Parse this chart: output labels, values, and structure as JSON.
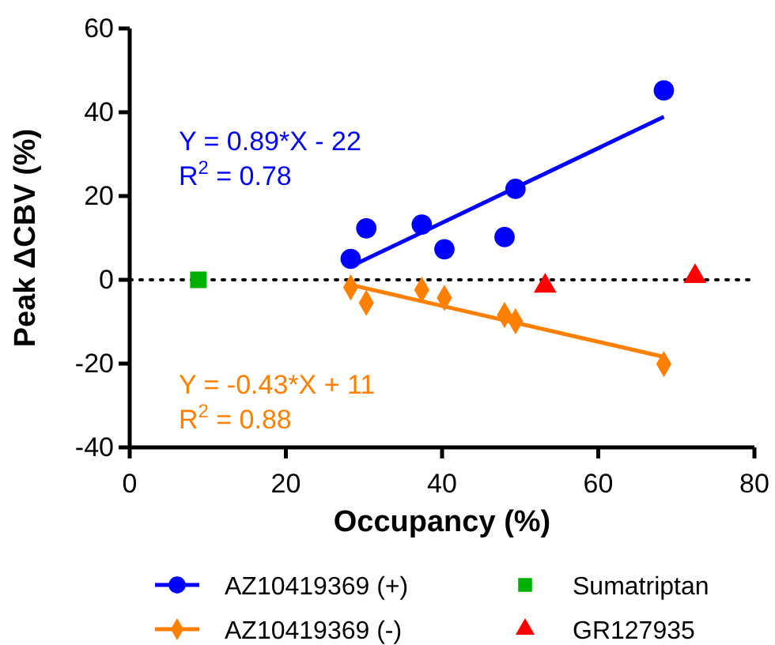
{
  "chart_data": {
    "type": "scatter",
    "xlabel": "Occupancy (%)",
    "ylabel": "Peak ΔCBV (%)",
    "xlim": [
      0,
      80
    ],
    "xticks": [
      0,
      20,
      40,
      60,
      80
    ],
    "ylim": [
      -40,
      60
    ],
    "yticks": [
      -40,
      -20,
      0,
      20,
      40,
      60
    ],
    "grid": false,
    "legend": "bottom",
    "series": [
      {
        "name": "AZ10419369 (+)",
        "color": "#0000ff",
        "marker": "circle",
        "x": [
          28.3,
          30.3,
          37.4,
          40.3,
          48.0,
          49.4,
          68.4
        ],
        "values": [
          5.0,
          12.3,
          13.2,
          7.3,
          10.2,
          21.7,
          45.2
        ]
      },
      {
        "name": "AZ10419369 (-)",
        "color": "#ff8000",
        "marker": "diamond",
        "x": [
          28.3,
          30.3,
          37.4,
          40.3,
          48.0,
          49.4,
          68.4
        ],
        "values": [
          -1.8,
          -5.5,
          -2.4,
          -4.3,
          -8.4,
          -9.9,
          -20.1
        ]
      },
      {
        "name": "Sumatriptan",
        "color": "#00b000",
        "marker": "square",
        "x": [
          8.8
        ],
        "values": [
          0
        ]
      },
      {
        "name": "GR127935",
        "color": "#ff0000",
        "marker": "triangle",
        "x": [
          53.2,
          72.4
        ],
        "values": [
          -1.5,
          0.8
        ]
      },
      {
        "type": "line",
        "color": "#0000ff",
        "x": [
          28.3,
          68.4
        ],
        "values": [
          3.2,
          38.9
        ]
      },
      {
        "type": "line",
        "color": "#ff8000",
        "x": [
          28.3,
          68.4
        ],
        "values": [
          -1.2,
          -18.4
        ]
      }
    ],
    "ref_lines": [
      {
        "axis": "y",
        "value": 0,
        "color": "#000000",
        "line_style": "dotted"
      }
    ],
    "annotations": [
      "Y = 0.89*X - 22",
      "R$^{2}$ = 0.78",
      "Y = -0.43*X + 11",
      "R$^{2}$ = 0.88"
    ]
  }
}
